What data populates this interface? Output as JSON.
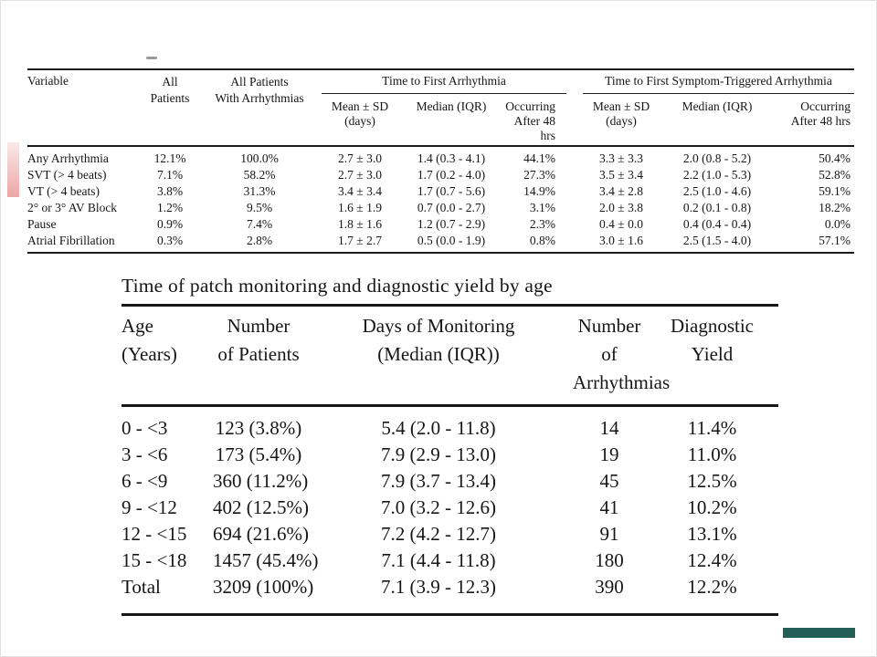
{
  "colors": {
    "pink_bar_top": "#f9e9e9",
    "pink_bar_bottom": "#eda6a6",
    "teal_bar": "#235e57",
    "rule": "#1c1c1c"
  },
  "table1": {
    "headers": {
      "variable": "Variable",
      "all_1": "All",
      "all_2": "Patients",
      "allarr_1": "All Patients",
      "allarr_2": "With Arrhythmias",
      "group1": "Time to First Arrhythmia",
      "group2": "Time to First Symptom-Triggered Arrhythmia",
      "mean_sd_1": "Mean ± SD",
      "mean_sd_2": "(days)",
      "median": "Median (IQR)",
      "occurring_1": "Occurring",
      "occurring_2": "After 48 hrs"
    },
    "rows": [
      [
        "Any Arrhythmia",
        "12.1%",
        "100.0%",
        "2.7 ± 3.0",
        "1.4 (0.3 - 4.1)",
        "44.1%",
        "3.3 ± 3.3",
        "2.0 (0.8 - 5.2)",
        "50.4%"
      ],
      [
        "SVT (> 4 beats)",
        "7.1%",
        "58.2%",
        "2.7 ± 3.0",
        "1.7 (0.2 - 4.0)",
        "27.3%",
        "3.5 ± 3.4",
        "2.2 (1.0 - 5.3)",
        "52.8%"
      ],
      [
        "VT (> 4 beats)",
        "3.8%",
        "31.3%",
        "3.4 ± 3.4",
        "1.7 (0.7 - 5.6)",
        "14.9%",
        "3.4 ± 2.8",
        "2.5 (1.0 - 4.6)",
        "59.1%"
      ],
      [
        "2° or 3° AV Block",
        "1.2%",
        "9.5%",
        "1.6 ± 1.9",
        "0.7 (0.0 - 2.7)",
        "3.1%",
        "2.0 ± 3.8",
        "0.2 (0.1 - 0.8)",
        "18.2%"
      ],
      [
        "Pause",
        "0.9%",
        "7.4%",
        "1.8 ± 1.6",
        "1.2 (0.7 - 2.9)",
        "2.3%",
        "0.4 ± 0.0",
        "0.4 (0.4 - 0.4)",
        "0.0%"
      ],
      [
        "Atrial Fibrillation",
        "0.3%",
        "2.8%",
        "1.7 ± 2.7",
        "0.5 (0.0 - 1.9)",
        "0.8%",
        "3.0 ± 1.6",
        "2.5 (1.5 - 4.0)",
        "57.1%"
      ]
    ]
  },
  "table2": {
    "title": "Time of patch monitoring and diagnostic yield by age",
    "headers": {
      "age_1": "Age",
      "age_2": "(Years)",
      "patients_1": "Number",
      "patients_2": "of Patients",
      "days_1": "Days of Monitoring",
      "days_2": "(Median (IQR))",
      "arr_1": "Number of",
      "arr_2": "Arrhythmias",
      "yield_1": "Diagnostic",
      "yield_2": "Yield"
    },
    "rows": [
      [
        "0 - <3",
        "123 (3.8%)",
        "5.4 (2.0 - 11.8)",
        "14",
        "11.4%"
      ],
      [
        "3 - <6",
        "173 (5.4%)",
        "7.9 (2.9 - 13.0)",
        "19",
        "11.0%"
      ],
      [
        "6 - <9",
        "360 (11.2%)",
        "7.9 (3.7 - 13.4)",
        "45",
        "12.5%"
      ],
      [
        "9 - <12",
        "402 (12.5%)",
        "7.0 (3.2 - 12.6)",
        "41",
        "10.2%"
      ],
      [
        "12 - <15",
        "694 (21.6%)",
        "7.2 (4.2 - 12.7)",
        "91",
        "13.1%"
      ],
      [
        "15 - <18",
        "1457 (45.4%)",
        "7.1 (4.4 - 11.8)",
        "180",
        "12.4%"
      ],
      [
        "Total",
        "3209 (100%)",
        "7.1 (3.9 - 12.3)",
        "390",
        "12.2%"
      ]
    ]
  }
}
